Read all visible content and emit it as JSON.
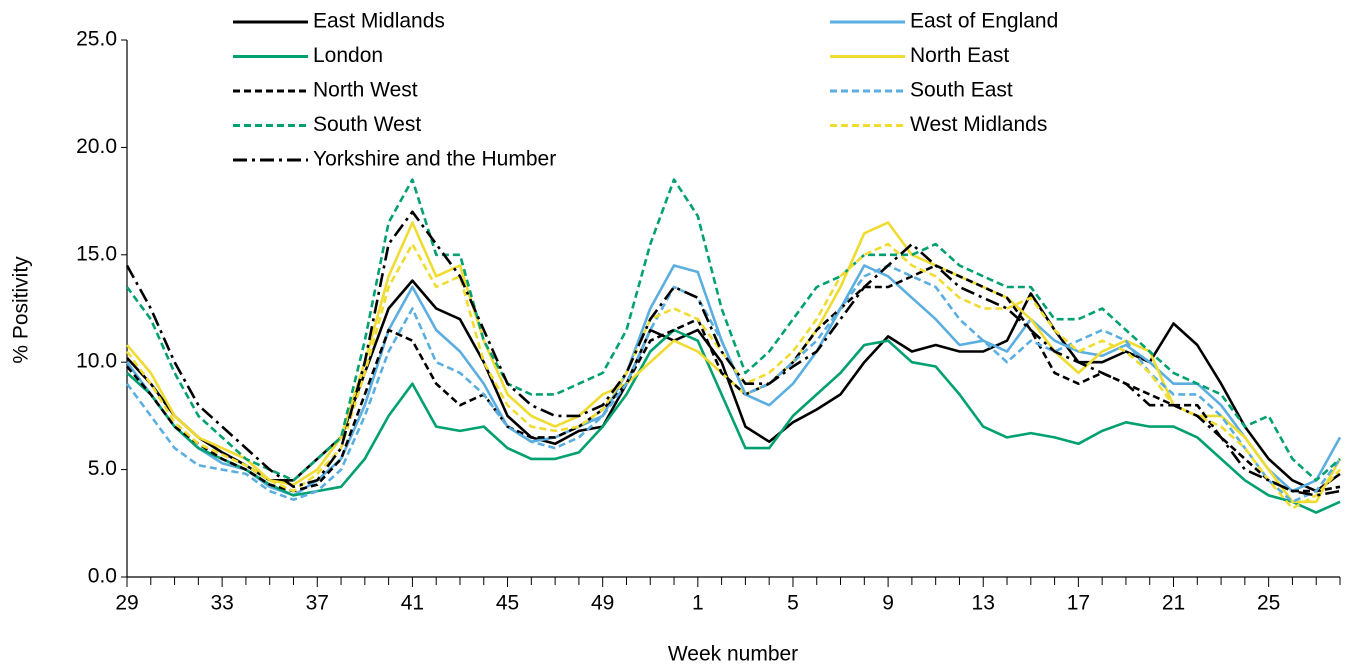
{
  "chart_data": {
    "type": "line",
    "x_label": "Week number",
    "y_label": "% Positivity",
    "categories": [
      29,
      null,
      null,
      null,
      33,
      null,
      null,
      null,
      37,
      null,
      null,
      null,
      41,
      null,
      null,
      null,
      45,
      null,
      null,
      null,
      49,
      null,
      null,
      null,
      1,
      null,
      null,
      null,
      5,
      null,
      null,
      null,
      9,
      null,
      null,
      null,
      13,
      null,
      null,
      null,
      17,
      null,
      null,
      null,
      21,
      null,
      null,
      null,
      25,
      null,
      null,
      null
    ],
    "ylim": [
      0,
      25
    ],
    "yticks": [
      {
        "value": 0,
        "label": "0.0"
      },
      {
        "value": 5,
        "label": "5.0"
      },
      {
        "value": 10,
        "label": "10.0"
      },
      {
        "value": 15,
        "label": "15.0"
      },
      {
        "value": 20,
        "label": "20.0"
      },
      {
        "value": 25,
        "label": "25.0"
      }
    ],
    "grid": false,
    "legend": "top",
    "series": [
      {
        "name": "East Midlands",
        "color": "#000000",
        "dash": "solid",
        "values": [
          10.2,
          9.0,
          7.5,
          6.5,
          5.8,
          5.2,
          4.5,
          4.5,
          5.5,
          6.5,
          9.5,
          12.5,
          13.8,
          12.5,
          12.0,
          10.0,
          7.5,
          6.5,
          6.2,
          6.8,
          7.0,
          9.0,
          11.5,
          11.0,
          11.5,
          10.0,
          7.0,
          6.3,
          7.2,
          7.8,
          8.5,
          10.0,
          11.2,
          10.5,
          10.8,
          10.5,
          10.5,
          11.0,
          13.2,
          11.5,
          10.0,
          10.0,
          10.5,
          10.0,
          11.8,
          10.8,
          9.0,
          7.0,
          5.5,
          4.5,
          4.0,
          4.8
        ]
      },
      {
        "name": "East of England",
        "color": "#5aaee0",
        "dash": "solid",
        "values": [
          10.0,
          8.5,
          7.0,
          6.0,
          5.3,
          5.0,
          4.2,
          3.8,
          4.5,
          5.5,
          8.0,
          11.5,
          13.5,
          11.5,
          10.5,
          9.0,
          7.0,
          6.3,
          6.5,
          7.0,
          7.5,
          9.5,
          12.5,
          14.5,
          14.2,
          11.0,
          8.5,
          8.0,
          9.0,
          10.5,
          12.5,
          14.5,
          14.0,
          13.0,
          12.0,
          10.8,
          11.0,
          10.5,
          12.0,
          11.0,
          10.5,
          10.3,
          10.8,
          10.0,
          9.0,
          9.0,
          8.0,
          6.5,
          5.0,
          4.0,
          4.5,
          6.5
        ]
      },
      {
        "name": "London",
        "color": "#00a070",
        "dash": "solid",
        "values": [
          9.5,
          8.5,
          7.0,
          6.0,
          5.5,
          5.0,
          4.3,
          3.8,
          4.0,
          4.2,
          5.5,
          7.5,
          9.0,
          7.0,
          6.8,
          7.0,
          6.0,
          5.5,
          5.5,
          5.8,
          7.0,
          8.5,
          10.5,
          11.5,
          11.0,
          8.5,
          6.0,
          6.0,
          7.5,
          8.5,
          9.5,
          10.8,
          11.0,
          10.0,
          9.8,
          8.5,
          7.0,
          6.5,
          6.7,
          6.5,
          6.2,
          6.8,
          7.2,
          7.0,
          7.0,
          6.5,
          5.5,
          4.5,
          3.8,
          3.5,
          3.0,
          3.5
        ]
      },
      {
        "name": "North East",
        "color": "#f0dc30",
        "dash": "solid",
        "values": [
          10.8,
          9.5,
          7.5,
          6.5,
          6.0,
          5.5,
          4.5,
          4.3,
          5.0,
          6.5,
          10.0,
          14.0,
          16.5,
          14.0,
          14.5,
          11.0,
          8.5,
          7.5,
          7.0,
          7.5,
          8.5,
          9.0,
          10.0,
          11.0,
          10.5,
          9.5,
          8.5,
          9.0,
          10.0,
          11.5,
          13.5,
          16.0,
          16.5,
          15.0,
          14.5,
          14.0,
          13.5,
          13.0,
          12.0,
          10.5,
          9.5,
          10.5,
          11.0,
          10.5,
          8.0,
          7.5,
          7.5,
          6.5,
          5.0,
          3.5,
          3.5,
          5.5
        ]
      },
      {
        "name": "North West",
        "color": "#000000",
        "dash": "dashed",
        "values": [
          9.8,
          8.5,
          7.0,
          6.2,
          5.5,
          5.0,
          4.3,
          4.0,
          4.3,
          5.5,
          8.5,
          11.5,
          11.0,
          9.0,
          8.0,
          8.5,
          7.0,
          6.5,
          6.5,
          7.0,
          7.8,
          9.0,
          11.0,
          11.5,
          12.0,
          9.5,
          8.5,
          9.0,
          10.0,
          11.5,
          12.5,
          13.5,
          13.5,
          14.0,
          14.5,
          14.0,
          13.5,
          13.0,
          11.5,
          9.5,
          9.0,
          9.5,
          9.0,
          8.5,
          8.0,
          8.0,
          6.5,
          5.5,
          4.5,
          4.0,
          4.0,
          4.2
        ]
      },
      {
        "name": "South East",
        "color": "#5aaee0",
        "dash": "dashed",
        "values": [
          9.0,
          7.5,
          6.0,
          5.2,
          5.0,
          4.8,
          4.0,
          3.6,
          4.0,
          5.0,
          7.5,
          10.5,
          12.5,
          10.0,
          9.5,
          8.5,
          7.0,
          6.3,
          6.0,
          6.5,
          7.5,
          9.0,
          11.5,
          13.5,
          13.0,
          11.0,
          8.5,
          9.0,
          10.0,
          11.0,
          12.5,
          14.0,
          14.5,
          14.0,
          13.5,
          12.0,
          11.0,
          10.0,
          11.0,
          10.5,
          11.0,
          11.5,
          11.0,
          9.5,
          8.5,
          8.5,
          7.5,
          6.0,
          4.5,
          3.5,
          4.0,
          5.5
        ]
      },
      {
        "name": "South West",
        "color": "#00a070",
        "dash": "dashed",
        "values": [
          13.5,
          12.0,
          9.5,
          7.5,
          6.5,
          5.5,
          5.0,
          4.5,
          5.5,
          6.5,
          11.0,
          16.5,
          18.5,
          15.0,
          15.0,
          11.0,
          9.0,
          8.5,
          8.5,
          9.0,
          9.5,
          11.5,
          15.5,
          18.5,
          16.8,
          12.5,
          9.5,
          10.5,
          12.0,
          13.5,
          14.0,
          15.0,
          15.0,
          15.0,
          15.5,
          14.5,
          14.0,
          13.5,
          13.5,
          12.0,
          12.0,
          12.5,
          11.5,
          10.5,
          9.5,
          9.0,
          8.5,
          7.0,
          7.5,
          5.5,
          4.5,
          5.5
        ]
      },
      {
        "name": "West Midlands",
        "color": "#f0dc30",
        "dash": "dashed",
        "values": [
          10.5,
          9.0,
          7.2,
          6.2,
          5.7,
          5.2,
          4.5,
          4.0,
          4.8,
          6.0,
          9.5,
          13.5,
          15.5,
          13.5,
          14.0,
          10.0,
          8.0,
          7.0,
          6.8,
          7.0,
          7.8,
          9.5,
          12.0,
          12.5,
          12.0,
          10.5,
          9.0,
          9.5,
          10.5,
          12.0,
          14.0,
          15.0,
          15.5,
          14.5,
          14.0,
          13.0,
          12.5,
          12.5,
          13.0,
          11.5,
          10.5,
          11.0,
          10.5,
          9.5,
          8.0,
          7.5,
          7.0,
          6.0,
          4.5,
          3.2,
          3.8,
          5.0
        ]
      },
      {
        "name": "Yorkshire and the Humber",
        "color": "#000000",
        "dash": "dashdot",
        "values": [
          14.5,
          12.5,
          10.0,
          8.0,
          7.0,
          6.0,
          5.0,
          4.2,
          4.5,
          6.0,
          10.0,
          15.5,
          17.0,
          15.5,
          14.0,
          11.5,
          9.0,
          8.0,
          7.5,
          7.5,
          8.0,
          9.5,
          12.0,
          13.5,
          13.0,
          10.5,
          9.0,
          9.0,
          9.8,
          10.5,
          12.0,
          13.5,
          14.5,
          15.5,
          14.5,
          13.5,
          13.0,
          12.5,
          11.5,
          10.5,
          10.0,
          9.5,
          9.0,
          8.0,
          8.0,
          7.5,
          6.5,
          5.0,
          4.5,
          4.0,
          3.8,
          4.0
        ]
      }
    ]
  }
}
